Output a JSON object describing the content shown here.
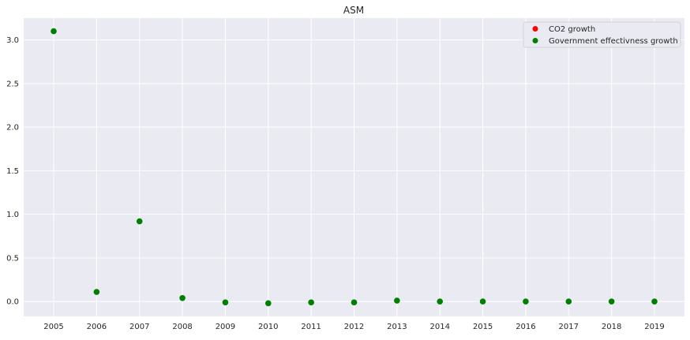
{
  "chart_data": {
    "type": "scatter",
    "title": "ASM",
    "xlabel": "",
    "ylabel": "",
    "x": [
      "2005",
      "2006",
      "2007",
      "2008",
      "2009",
      "2010",
      "2011",
      "2012",
      "2013",
      "2014",
      "2015",
      "2016",
      "2017",
      "2018",
      "2019"
    ],
    "ylim": [
      -0.17,
      3.25
    ],
    "yticks": [
      "0.0",
      "0.5",
      "1.0",
      "1.5",
      "2.0",
      "2.5",
      "3.0"
    ],
    "grid": true,
    "legend_position": "top-right",
    "series": [
      {
        "name": "CO2 growth",
        "color": "#ff0000",
        "values": []
      },
      {
        "name": "Government effectivness growth",
        "color": "#008000",
        "values": [
          3.1,
          0.11,
          0.92,
          0.04,
          -0.01,
          -0.02,
          -0.01,
          -0.01,
          0.01,
          0.0,
          0.0,
          0.0,
          0.0,
          0.0,
          0.0
        ]
      }
    ]
  }
}
